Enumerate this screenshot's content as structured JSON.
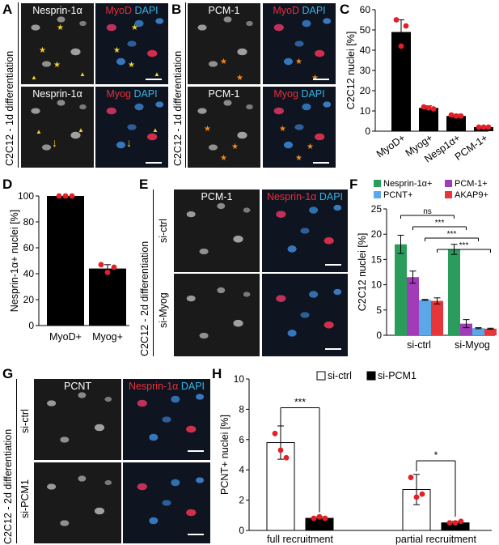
{
  "panels": {
    "A": {
      "letter": "A",
      "top_left": "Nesprin-1α",
      "top_right_a": "MyoD",
      "top_right_b": "DAPI",
      "bottom_left": "Nesprin-1α",
      "bottom_right_a": "Myog",
      "bottom_right_b": "DAPI",
      "side": "C2C12 - 1d differentiation"
    },
    "B": {
      "letter": "B",
      "top_left": "PCM-1",
      "top_right_a": "MyoD",
      "top_right_b": "DAPI",
      "bottom_left": "PCM-1",
      "bottom_right_a": "Myog",
      "bottom_right_b": "DAPI",
      "side": "C2C12 - 1d differentiation"
    },
    "C": {
      "letter": "C"
    },
    "D": {
      "letter": "D"
    },
    "E": {
      "letter": "E",
      "top_left": "PCM-1",
      "top_right_a": "Nesprin-1α",
      "top_right_b": "DAPI",
      "side": "C2C12 - 2d differentiation",
      "row1": "si-ctrl",
      "row2": "si-Myog"
    },
    "F": {
      "letter": "F"
    },
    "G": {
      "letter": "G",
      "top_left": "PCNT",
      "top_right_a": "Nesprin-1α",
      "top_right_b": "DAPI",
      "side": "C2C12 - 2d differentiation",
      "row1": "si-ctrl",
      "row2": "si-PCM1"
    },
    "H": {
      "letter": "H"
    }
  },
  "colors": {
    "black": "#000000",
    "red_dot": "#e41f26",
    "green": "#2a9d5c",
    "purple": "#a23bb8",
    "blue": "#5aa8e8",
    "red": "#e8353a"
  },
  "chart_data": [
    {
      "id": "C",
      "type": "bar",
      "ylabel": "C2C12 nuclei [%]",
      "categories": [
        "MyoD+",
        "Myog+",
        "Nesp1α+",
        "PCM-1+"
      ],
      "values": [
        49,
        11.5,
        7.5,
        2
      ],
      "errors": [
        6,
        1,
        0.8,
        0.3
      ],
      "points": [
        [
          55,
          42,
          52
        ],
        [
          12,
          11.5,
          11
        ],
        [
          8,
          7.5,
          7.5
        ],
        [
          2,
          2,
          2
        ]
      ],
      "ylim": [
        0,
        60
      ],
      "yticks": [
        0,
        10,
        20,
        30,
        40,
        50,
        60
      ]
    },
    {
      "id": "D",
      "type": "bar",
      "ylabel": "Nesprin-1α+ nuclei [%]",
      "categories": [
        "MyoD+",
        "Myog+"
      ],
      "values": [
        100,
        44
      ],
      "errors": [
        0,
        3
      ],
      "points": [
        [
          100,
          100,
          100
        ],
        [
          47,
          41,
          45
        ]
      ],
      "ylim": [
        0,
        100
      ],
      "yticks": [
        0,
        20,
        40,
        60,
        80,
        100
      ]
    },
    {
      "id": "F",
      "type": "bar",
      "ylabel": "C2C12 nuclei [%]",
      "categories": [
        "si-ctrl",
        "si-Myog"
      ],
      "series": [
        {
          "name": "Nesprin-1α+",
          "values": [
            18,
            17
          ],
          "errors": [
            1.8,
            1
          ]
        },
        {
          "name": "PCM-1+",
          "values": [
            11.5,
            2.3
          ],
          "errors": [
            1.2,
            0.8
          ]
        },
        {
          "name": "PCNT+",
          "values": [
            7,
            1.4
          ],
          "errors": [
            0.1,
            0.1
          ]
        },
        {
          "name": "AKAP9+",
          "values": [
            6.8,
            1.3
          ],
          "errors": [
            0.6,
            0.1
          ]
        }
      ],
      "ylim": [
        0,
        25
      ],
      "yticks": [
        0,
        5,
        10,
        15,
        20,
        25
      ],
      "significance": [
        "ns",
        "***",
        "***",
        "***"
      ]
    },
    {
      "id": "H",
      "type": "bar",
      "ylabel": "PCNT+ nuclei [%]",
      "categories": [
        "full recruitment",
        "partial recruitment"
      ],
      "series": [
        {
          "name": "si-ctrl",
          "values": [
            5.8,
            2.7
          ],
          "errors": [
            1.1,
            1.0
          ]
        },
        {
          "name": "si-PCM1",
          "values": [
            0.8,
            0.5
          ],
          "errors": [
            0.1,
            0.1
          ]
        }
      ],
      "points": [
        [
          [
            6.4,
            5.3,
            4.8
          ],
          [
            3.5,
            2.2,
            2.4
          ]
        ],
        [
          [
            0.8,
            0.9,
            0.8
          ],
          [
            0.5,
            0.5,
            0.6
          ]
        ]
      ],
      "ylim": [
        0,
        10
      ],
      "yticks": [
        0,
        2,
        4,
        6,
        8,
        10
      ],
      "significance": [
        "***",
        "*"
      ]
    }
  ]
}
